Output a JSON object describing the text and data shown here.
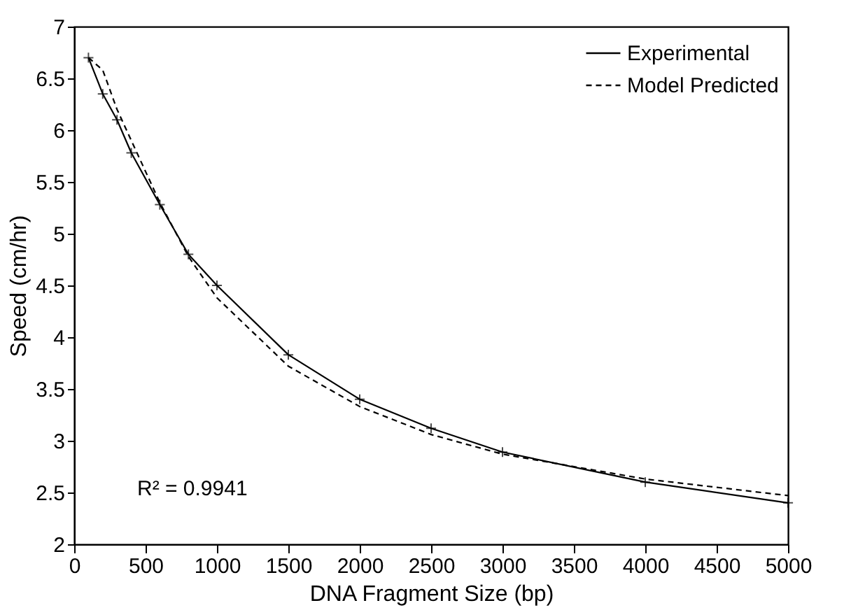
{
  "chart_data": {
    "type": "line",
    "xlabel": "DNA Fragment Size (bp)",
    "ylabel": "Speed (cm/hr)",
    "xlim": [
      0,
      5000
    ],
    "xticks": [
      0,
      500,
      1000,
      1500,
      2000,
      2500,
      3000,
      3500,
      4000,
      4500,
      5000
    ],
    "ylim": [
      2,
      7
    ],
    "yticks": [
      2,
      2.5,
      3,
      3.5,
      4,
      4.5,
      5,
      5.5,
      6,
      6.5,
      7
    ],
    "x": [
      100,
      200,
      300,
      400,
      600,
      800,
      1000,
      1500,
      2000,
      2500,
      3000,
      4000,
      5000
    ],
    "series": [
      {
        "name": "Experimental",
        "color": "#000000",
        "marker": "cross",
        "line_style": "solid",
        "values": [
          6.7,
          6.35,
          6.1,
          5.78,
          5.28,
          4.8,
          4.5,
          3.83,
          3.4,
          3.12,
          2.89,
          2.6,
          2.4
        ]
      },
      {
        "name": "Model Predicted",
        "color": "#000000",
        "marker": "none",
        "line_style": "dashed",
        "values": [
          6.7,
          6.58,
          6.2,
          5.9,
          5.3,
          4.78,
          4.38,
          3.72,
          3.33,
          3.06,
          2.87,
          2.63,
          2.47
        ]
      }
    ],
    "annotations": [
      "R² = 0.9941"
    ],
    "legend": "top right",
    "grid": false
  }
}
